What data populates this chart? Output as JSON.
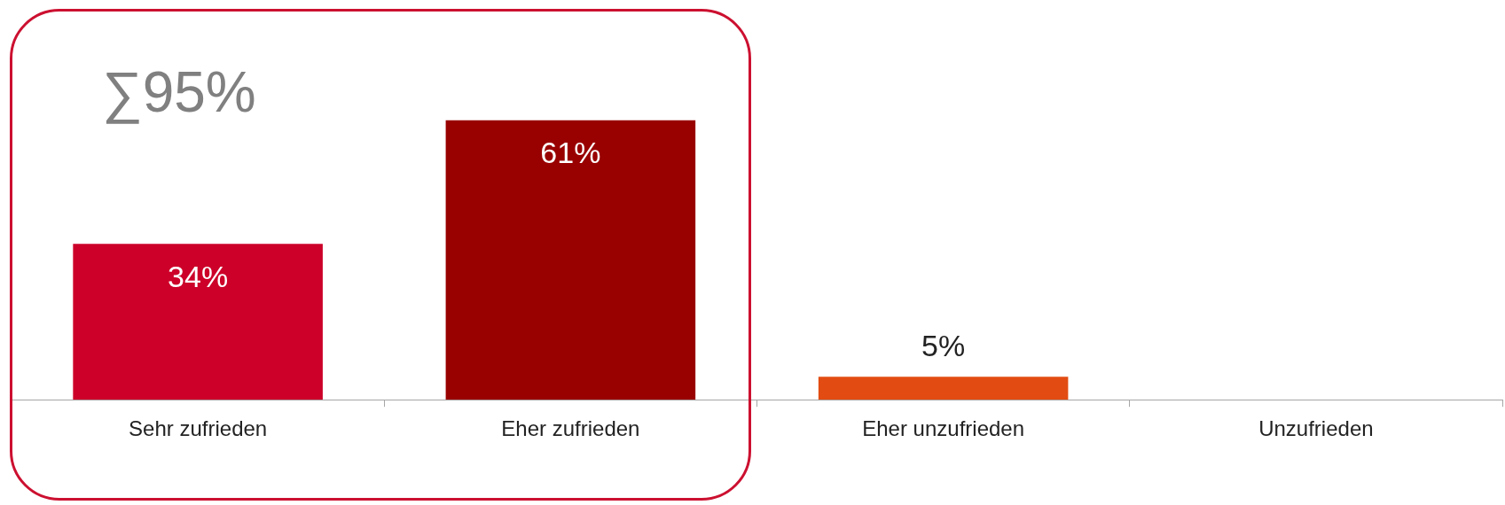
{
  "chart_data": {
    "type": "bar",
    "categories": [
      "Sehr zufrieden",
      "Eher zufrieden",
      "Eher unzufrieden",
      "Unzufrieden"
    ],
    "values": [
      34,
      61,
      5,
      0
    ],
    "colors": [
      "#cc0029",
      "#990000",
      "#e24c12",
      "#e24c12"
    ],
    "value_labels": [
      "34%",
      "61%",
      "5%",
      null
    ],
    "annotations": [
      "∑95%"
    ],
    "grid": false,
    "legend": false
  }
}
